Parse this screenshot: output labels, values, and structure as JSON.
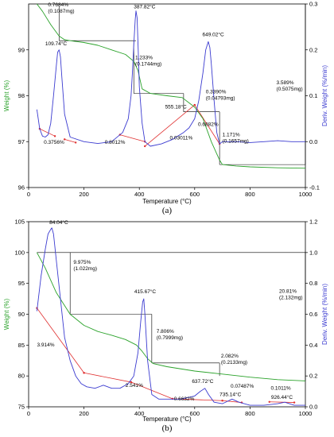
{
  "colors": {
    "weight": "#2aa22a",
    "deriv": "#3b3bd0",
    "baseline": "#e03030",
    "annotation": "#000000",
    "axis": "#000000"
  },
  "chart_data": [
    {
      "panel": "(a)",
      "type": "line",
      "xlabel": "Temperature (°C)",
      "ylabel": "Weight (%)",
      "y2label": "Deriv. Weight (%/min)",
      "xlim": [
        0,
        1000
      ],
      "ylim": [
        96,
        100
      ],
      "y2lim": [
        -0.1,
        0.3
      ],
      "xticks": [
        0,
        200,
        400,
        600,
        800,
        1000
      ],
      "yticks": [
        96,
        97,
        98,
        99
      ],
      "y2ticks": [
        -0.1,
        0.0,
        0.1,
        0.2,
        0.3
      ],
      "xtick_labels": [
        "0",
        "200",
        "400",
        "600",
        "800",
        "1000"
      ],
      "ytick_labels": [
        "96",
        "97",
        "98",
        "99"
      ],
      "y2tick_labels": [
        "-0.1",
        "0.0",
        "0.1",
        "0.2",
        "0.3"
      ],
      "grid": false,
      "series": [
        {
          "axis": "y",
          "color": "#2aa22a",
          "x": [
            30,
            50,
            80,
            110,
            130,
            150,
            200,
            250,
            300,
            350,
            380,
            395,
            410,
            440,
            500,
            555,
            600,
            630,
            660,
            690,
            700,
            750,
            800,
            900,
            1000
          ],
          "values": [
            100.0,
            99.84,
            99.55,
            99.3,
            99.22,
            99.2,
            99.16,
            99.1,
            99.0,
            98.9,
            98.75,
            98.55,
            98.15,
            98.05,
            98.0,
            97.96,
            97.75,
            97.5,
            97.0,
            96.6,
            96.5,
            96.47,
            96.45,
            96.43,
            96.42
          ]
        },
        {
          "axis": "y2",
          "color": "#3b3bd0",
          "x": [
            30,
            40,
            50,
            60,
            70,
            80,
            90,
            100,
            105,
            110,
            115,
            120,
            130,
            150,
            200,
            250,
            300,
            340,
            360,
            370,
            375,
            380,
            385,
            388,
            392,
            396,
            400,
            410,
            420,
            440,
            480,
            520,
            560,
            580,
            600,
            615,
            630,
            640,
            649,
            655,
            660,
            670,
            680,
            690,
            700,
            750,
            800,
            850,
            900,
            950,
            1000
          ],
          "values": [
            0.07,
            0.028,
            0.012,
            0.01,
            0.015,
            0.04,
            0.1,
            0.165,
            0.195,
            0.2,
            0.185,
            0.14,
            0.06,
            0.01,
            0.0,
            -0.004,
            0.0,
            0.02,
            0.05,
            0.1,
            0.15,
            0.21,
            0.265,
            0.285,
            0.27,
            0.2,
            0.12,
            0.04,
            0.0,
            -0.01,
            -0.005,
            0.005,
            0.02,
            0.03,
            0.05,
            0.09,
            0.15,
            0.2,
            0.218,
            0.205,
            0.17,
            0.09,
            0.02,
            -0.005,
            0.0,
            0.0,
            -0.002,
            0.0,
            0.002,
            0.0,
            0.0
          ]
        }
      ],
      "annotations": [
        {
          "text": "0.7684%",
          "text2": "(0.1087mg)"
        },
        {
          "text": "387.82°C"
        },
        {
          "text": "109.74°C"
        },
        {
          "text": "1.233%",
          "text2": "(0.1744mg)"
        },
        {
          "text": "649.02°C"
        },
        {
          "text": "0.3390%",
          "text2": "(0.04793mg)"
        },
        {
          "text": "3.589%",
          "text2": "(0.5075mg)"
        },
        {
          "text": "555.18°C"
        },
        {
          "text": "0.6882%"
        },
        {
          "text": "1.171%",
          "text2": "(0.1657mg)"
        },
        {
          "text": "0.3756%"
        },
        {
          "text": "0.8012%"
        },
        {
          "text": "0.03011%"
        }
      ]
    },
    {
      "panel": "(b)",
      "type": "line",
      "xlabel": "Temperature (°C)",
      "ylabel": "Weight (%)",
      "y2label": "Deriv. Weight (%/min)",
      "xlim": [
        0,
        1000
      ],
      "ylim": [
        75,
        105
      ],
      "y2lim": [
        0,
        1.2
      ],
      "xticks": [
        0,
        200,
        400,
        600,
        800,
        1000
      ],
      "yticks": [
        75,
        80,
        85,
        90,
        95,
        100,
        105
      ],
      "y2ticks": [
        0.0,
        0.2,
        0.4,
        0.6,
        0.8,
        1.0,
        1.2
      ],
      "xtick_labels": [
        "0",
        "200",
        "400",
        "600",
        "800",
        "1000"
      ],
      "ytick_labels": [
        "75",
        "80",
        "85",
        "90",
        "95",
        "100",
        "105"
      ],
      "y2tick_labels": [
        "0.0",
        "0.2",
        "0.4",
        "0.6",
        "0.8",
        "1.0",
        "1.2"
      ],
      "grid": false,
      "series": [
        {
          "axis": "y",
          "color": "#2aa22a",
          "x": [
            30,
            60,
            100,
            150,
            200,
            250,
            300,
            350,
            390,
            410,
            430,
            450,
            500,
            600,
            700,
            800,
            900,
            1000
          ],
          "values": [
            100.0,
            97.5,
            93.5,
            90.0,
            88.2,
            87.2,
            86.6,
            85.9,
            85.0,
            84.0,
            82.8,
            82.0,
            81.5,
            80.8,
            80.3,
            79.8,
            79.4,
            79.2
          ]
        },
        {
          "axis": "y2",
          "color": "#3b3bd0",
          "x": [
            30,
            45,
            60,
            70,
            80,
            84,
            90,
            100,
            115,
            130,
            150,
            170,
            190,
            210,
            240,
            270,
            300,
            330,
            360,
            380,
            395,
            405,
            412,
            416,
            420,
            430,
            445,
            470,
            500,
            550,
            600,
            620,
            637,
            650,
            670,
            700,
            735,
            760,
            800,
            850,
            900,
            926,
            960,
            1000
          ],
          "values": [
            0.62,
            0.85,
            1.02,
            1.12,
            1.15,
            1.16,
            1.12,
            0.95,
            0.7,
            0.45,
            0.3,
            0.2,
            0.15,
            0.13,
            0.12,
            0.14,
            0.12,
            0.12,
            0.15,
            0.2,
            0.35,
            0.55,
            0.68,
            0.7,
            0.6,
            0.3,
            0.08,
            0.05,
            0.05,
            0.05,
            0.07,
            0.1,
            0.12,
            0.08,
            0.03,
            0.02,
            0.05,
            0.03,
            0.01,
            0.01,
            0.02,
            0.03,
            0.01,
            0.01
          ]
        }
      ],
      "annotations": [
        {
          "text": "84.04°C"
        },
        {
          "text": "9.975%",
          "text2": "(1.022mg)"
        },
        {
          "text": "415.67°C"
        },
        {
          "text": "20.81%",
          "text2": "(2.132mg)"
        },
        {
          "text": "7.806%",
          "text2": "(0.7999mg)"
        },
        {
          "text": "3.914%"
        },
        {
          "text": "2.082%",
          "text2": "(0.2133mg)"
        },
        {
          "text": "637.72°C"
        },
        {
          "text": "0.07487%"
        },
        {
          "text": "2.541%"
        },
        {
          "text": "735.14°C"
        },
        {
          "text": "0.1011%"
        },
        {
          "text": "0.6632%"
        },
        {
          "text": "926.44°C"
        }
      ]
    }
  ]
}
